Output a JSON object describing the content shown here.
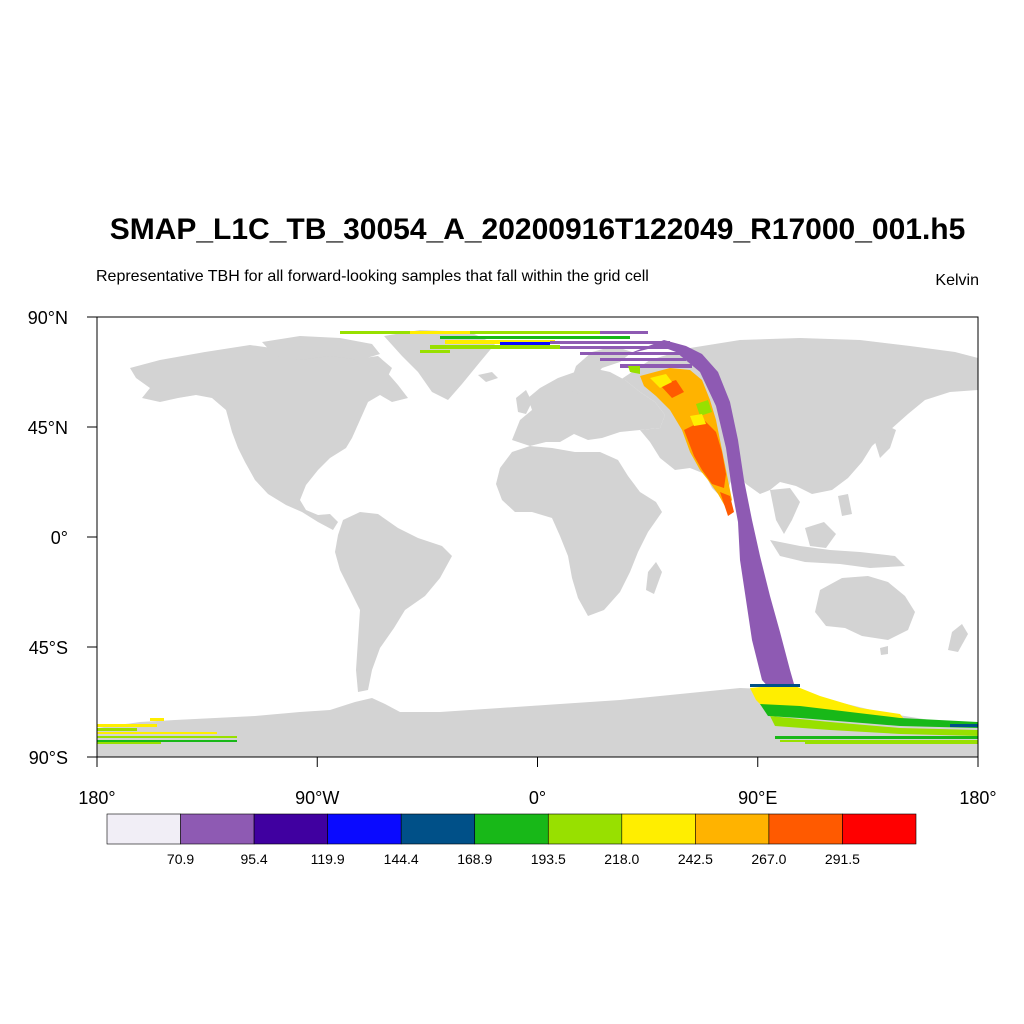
{
  "title": "SMAP_L1C_TB_30054_A_20200916T122049_R17000_001.h5",
  "subtitle": "Representative TBH for all forward-looking samples that fall within the grid cell",
  "units": "Kelvin",
  "map": {
    "projection": "cylindrical-equidistant",
    "lon_range": [
      -180,
      180
    ],
    "lat_range": [
      -90,
      90
    ],
    "land_color": "#d3d3d3",
    "ocean_color": "#ffffff",
    "lat_ticks": [
      {
        "value": 90,
        "label": "90°N"
      },
      {
        "value": 45,
        "label": "45°N"
      },
      {
        "value": 0,
        "label": "0°"
      },
      {
        "value": -45,
        "label": "45°S"
      },
      {
        "value": -90,
        "label": "90°S"
      }
    ],
    "lon_ticks": [
      {
        "value": -180,
        "label": "180°"
      },
      {
        "value": -90,
        "label": "90°W"
      },
      {
        "value": 0,
        "label": "0°"
      },
      {
        "value": 90,
        "label": "90°E"
      },
      {
        "value": 180,
        "label": "180°"
      }
    ]
  },
  "colorbar": {
    "colors": [
      "#f1eef6",
      "#8e5ab3",
      "#4000a0",
      "#0a0aff",
      "#005088",
      "#18b818",
      "#98e000",
      "#ffee00",
      "#ffb300",
      "#ff5a00",
      "#ff0000"
    ],
    "labels": [
      "70.9",
      "95.4",
      "119.9",
      "144.4",
      "168.9",
      "193.5",
      "218.0",
      "242.5",
      "267.0",
      "291.5"
    ]
  }
}
